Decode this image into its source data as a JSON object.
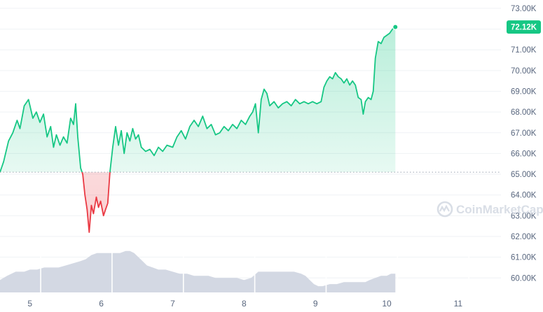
{
  "chart_data": {
    "type": "area",
    "title": "",
    "xlabel": "",
    "ylabel": "",
    "x_ticks": [
      "5",
      "6",
      "7",
      "8",
      "9",
      "10",
      "11"
    ],
    "y_ticks": [
      "73.00K",
      "72.00K",
      "71.00K",
      "70.00K",
      "69.00K",
      "68.00K",
      "67.00K",
      "66.00K",
      "65.00K",
      "64.00K",
      "63.00K",
      "62.00K",
      "61.00K",
      "60.00K"
    ],
    "ylim": [
      59.3,
      73.2
    ],
    "xlim": [
      4.58,
      11.6
    ],
    "baseline": 65.1,
    "current_label": "72.12K",
    "watermark": "CoinMarketCap",
    "colors": {
      "up": "#16c784",
      "down": "#ea3943",
      "volume": "#d3d8e3",
      "grid": "#eff2f5",
      "badge": "#16c784"
    },
    "series": [
      {
        "values": [
          [
            4.58,
            65.1
          ],
          [
            4.63,
            65.6
          ],
          [
            4.7,
            66.6
          ],
          [
            4.76,
            67.0
          ],
          [
            4.82,
            67.6
          ],
          [
            4.86,
            67.2
          ],
          [
            4.92,
            68.3
          ],
          [
            4.98,
            68.6
          ],
          [
            5.04,
            67.7
          ],
          [
            5.09,
            68.0
          ],
          [
            5.14,
            67.5
          ],
          [
            5.19,
            67.9
          ],
          [
            5.24,
            66.8
          ],
          [
            5.29,
            67.3
          ],
          [
            5.33,
            66.3
          ],
          [
            5.37,
            66.9
          ],
          [
            5.42,
            66.4
          ],
          [
            5.47,
            66.8
          ],
          [
            5.52,
            66.5
          ],
          [
            5.57,
            67.7
          ],
          [
            5.61,
            67.4
          ],
          [
            5.64,
            68.4
          ],
          [
            5.67,
            66.8
          ],
          [
            5.71,
            65.3
          ],
          [
            5.74,
            65.0
          ],
          [
            5.77,
            64.0
          ],
          [
            5.8,
            63.3
          ],
          [
            5.83,
            62.2
          ],
          [
            5.86,
            63.5
          ],
          [
            5.89,
            63.1
          ],
          [
            5.93,
            63.9
          ],
          [
            5.96,
            63.4
          ],
          [
            5.99,
            63.7
          ],
          [
            6.03,
            63.0
          ],
          [
            6.06,
            63.3
          ],
          [
            6.09,
            63.6
          ],
          [
            6.12,
            65.1
          ],
          [
            6.16,
            66.3
          ],
          [
            6.2,
            67.3
          ],
          [
            6.24,
            66.4
          ],
          [
            6.28,
            67.1
          ],
          [
            6.32,
            66.0
          ],
          [
            6.36,
            67.0
          ],
          [
            6.4,
            66.6
          ],
          [
            6.44,
            67.2
          ],
          [
            6.48,
            66.7
          ],
          [
            6.52,
            66.9
          ],
          [
            6.56,
            66.3
          ],
          [
            6.62,
            66.1
          ],
          [
            6.68,
            66.2
          ],
          [
            6.74,
            65.9
          ],
          [
            6.8,
            66.3
          ],
          [
            6.86,
            66.1
          ],
          [
            6.92,
            66.4
          ],
          [
            7.0,
            66.3
          ],
          [
            7.06,
            66.8
          ],
          [
            7.12,
            67.1
          ],
          [
            7.18,
            66.7
          ],
          [
            7.24,
            67.3
          ],
          [
            7.3,
            67.6
          ],
          [
            7.36,
            67.3
          ],
          [
            7.42,
            67.8
          ],
          [
            7.48,
            67.2
          ],
          [
            7.54,
            67.4
          ],
          [
            7.6,
            66.9
          ],
          [
            7.66,
            67.0
          ],
          [
            7.72,
            67.3
          ],
          [
            7.78,
            67.1
          ],
          [
            7.84,
            67.4
          ],
          [
            7.9,
            67.2
          ],
          [
            7.96,
            67.6
          ],
          [
            8.02,
            67.4
          ],
          [
            8.08,
            67.8
          ],
          [
            8.12,
            68.0
          ],
          [
            8.16,
            68.4
          ],
          [
            8.2,
            67.0
          ],
          [
            8.24,
            68.6
          ],
          [
            8.28,
            69.1
          ],
          [
            8.32,
            68.9
          ],
          [
            8.36,
            68.3
          ],
          [
            8.42,
            68.5
          ],
          [
            8.48,
            68.2
          ],
          [
            8.54,
            68.4
          ],
          [
            8.6,
            68.5
          ],
          [
            8.66,
            68.3
          ],
          [
            8.72,
            68.6
          ],
          [
            8.78,
            68.4
          ],
          [
            8.84,
            68.5
          ],
          [
            8.9,
            68.4
          ],
          [
            8.96,
            68.5
          ],
          [
            9.02,
            68.4
          ],
          [
            9.08,
            68.5
          ],
          [
            9.12,
            69.2
          ],
          [
            9.16,
            69.5
          ],
          [
            9.2,
            69.7
          ],
          [
            9.24,
            69.6
          ],
          [
            9.28,
            69.9
          ],
          [
            9.32,
            69.7
          ],
          [
            9.36,
            69.6
          ],
          [
            9.4,
            69.4
          ],
          [
            9.44,
            69.6
          ],
          [
            9.48,
            69.3
          ],
          [
            9.52,
            69.5
          ],
          [
            9.56,
            69.3
          ],
          [
            9.6,
            68.7
          ],
          [
            9.64,
            68.6
          ],
          [
            9.67,
            67.9
          ],
          [
            9.7,
            68.5
          ],
          [
            9.74,
            68.7
          ],
          [
            9.78,
            68.6
          ],
          [
            9.81,
            69.0
          ],
          [
            9.84,
            70.6
          ],
          [
            9.88,
            71.4
          ],
          [
            9.92,
            71.3
          ],
          [
            9.96,
            71.6
          ],
          [
            10.0,
            71.7
          ],
          [
            10.04,
            71.8
          ],
          [
            10.08,
            72.0
          ],
          [
            10.12,
            72.1
          ]
        ]
      },
      {
        "values": [
          [
            4.58,
            59.9
          ],
          [
            4.68,
            60.1
          ],
          [
            4.8,
            60.3
          ],
          [
            4.92,
            60.3
          ],
          [
            5.0,
            60.4
          ],
          [
            5.1,
            60.4
          ],
          [
            5.2,
            60.5
          ],
          [
            5.3,
            60.5
          ],
          [
            5.4,
            60.5
          ],
          [
            5.5,
            60.6
          ],
          [
            5.6,
            60.7
          ],
          [
            5.7,
            60.8
          ],
          [
            5.78,
            60.9
          ],
          [
            5.86,
            61.1
          ],
          [
            5.94,
            61.2
          ],
          [
            6.02,
            61.2
          ],
          [
            6.1,
            61.2
          ],
          [
            6.18,
            61.2
          ],
          [
            6.26,
            61.2
          ],
          [
            6.34,
            61.3
          ],
          [
            6.4,
            61.3
          ],
          [
            6.46,
            61.2
          ],
          [
            6.52,
            61.0
          ],
          [
            6.58,
            60.8
          ],
          [
            6.64,
            60.6
          ],
          [
            6.72,
            60.5
          ],
          [
            6.8,
            60.4
          ],
          [
            6.9,
            60.4
          ],
          [
            7.0,
            60.3
          ],
          [
            7.1,
            60.2
          ],
          [
            7.2,
            60.2
          ],
          [
            7.3,
            60.1
          ],
          [
            7.4,
            60.1
          ],
          [
            7.5,
            60.1
          ],
          [
            7.6,
            60.0
          ],
          [
            7.7,
            60.0
          ],
          [
            7.8,
            60.0
          ],
          [
            7.9,
            60.0
          ],
          [
            8.0,
            59.9
          ],
          [
            8.1,
            60.0
          ],
          [
            8.2,
            60.3
          ],
          [
            8.3,
            60.3
          ],
          [
            8.4,
            60.3
          ],
          [
            8.5,
            60.3
          ],
          [
            8.6,
            60.3
          ],
          [
            8.7,
            60.3
          ],
          [
            8.8,
            60.2
          ],
          [
            8.86,
            60.1
          ],
          [
            8.92,
            59.9
          ],
          [
            8.98,
            59.7
          ],
          [
            9.04,
            59.6
          ],
          [
            9.1,
            59.6
          ],
          [
            9.2,
            59.7
          ],
          [
            9.3,
            59.7
          ],
          [
            9.4,
            59.8
          ],
          [
            9.5,
            59.8
          ],
          [
            9.6,
            59.8
          ],
          [
            9.7,
            59.8
          ],
          [
            9.76,
            59.9
          ],
          [
            9.84,
            60.0
          ],
          [
            9.92,
            60.1
          ],
          [
            10.0,
            60.1
          ],
          [
            10.06,
            60.2
          ],
          [
            10.12,
            60.2
          ]
        ]
      }
    ]
  }
}
